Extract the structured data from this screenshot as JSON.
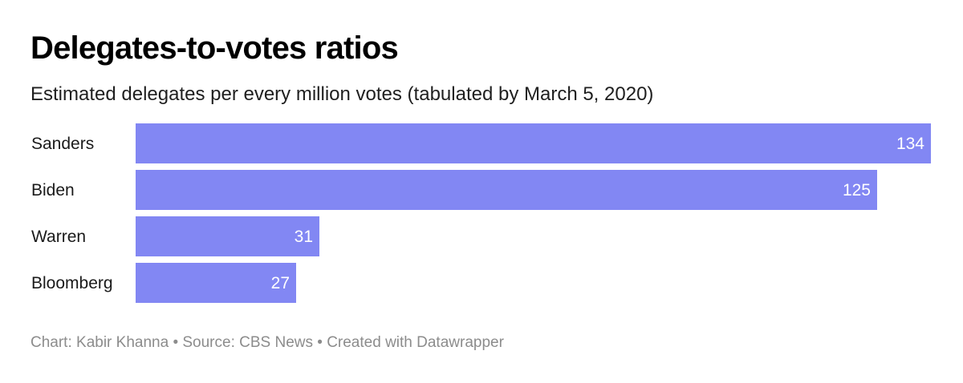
{
  "chart_data": {
    "type": "bar",
    "orientation": "horizontal",
    "title": "Delegates-to-votes ratios",
    "subtitle": "Estimated delegates per every million votes (tabulated by March 5, 2020)",
    "categories": [
      "Sanders",
      "Biden",
      "Warren",
      "Bloomberg"
    ],
    "values": [
      134,
      125,
      31,
      27
    ],
    "xlim": [
      0,
      134
    ],
    "grid": false,
    "data_labels": "inside-end",
    "bar_color": "#8287f3"
  },
  "footer": {
    "credit": "Chart: Kabir Khanna • Source: CBS News • Created with Datawrapper"
  }
}
